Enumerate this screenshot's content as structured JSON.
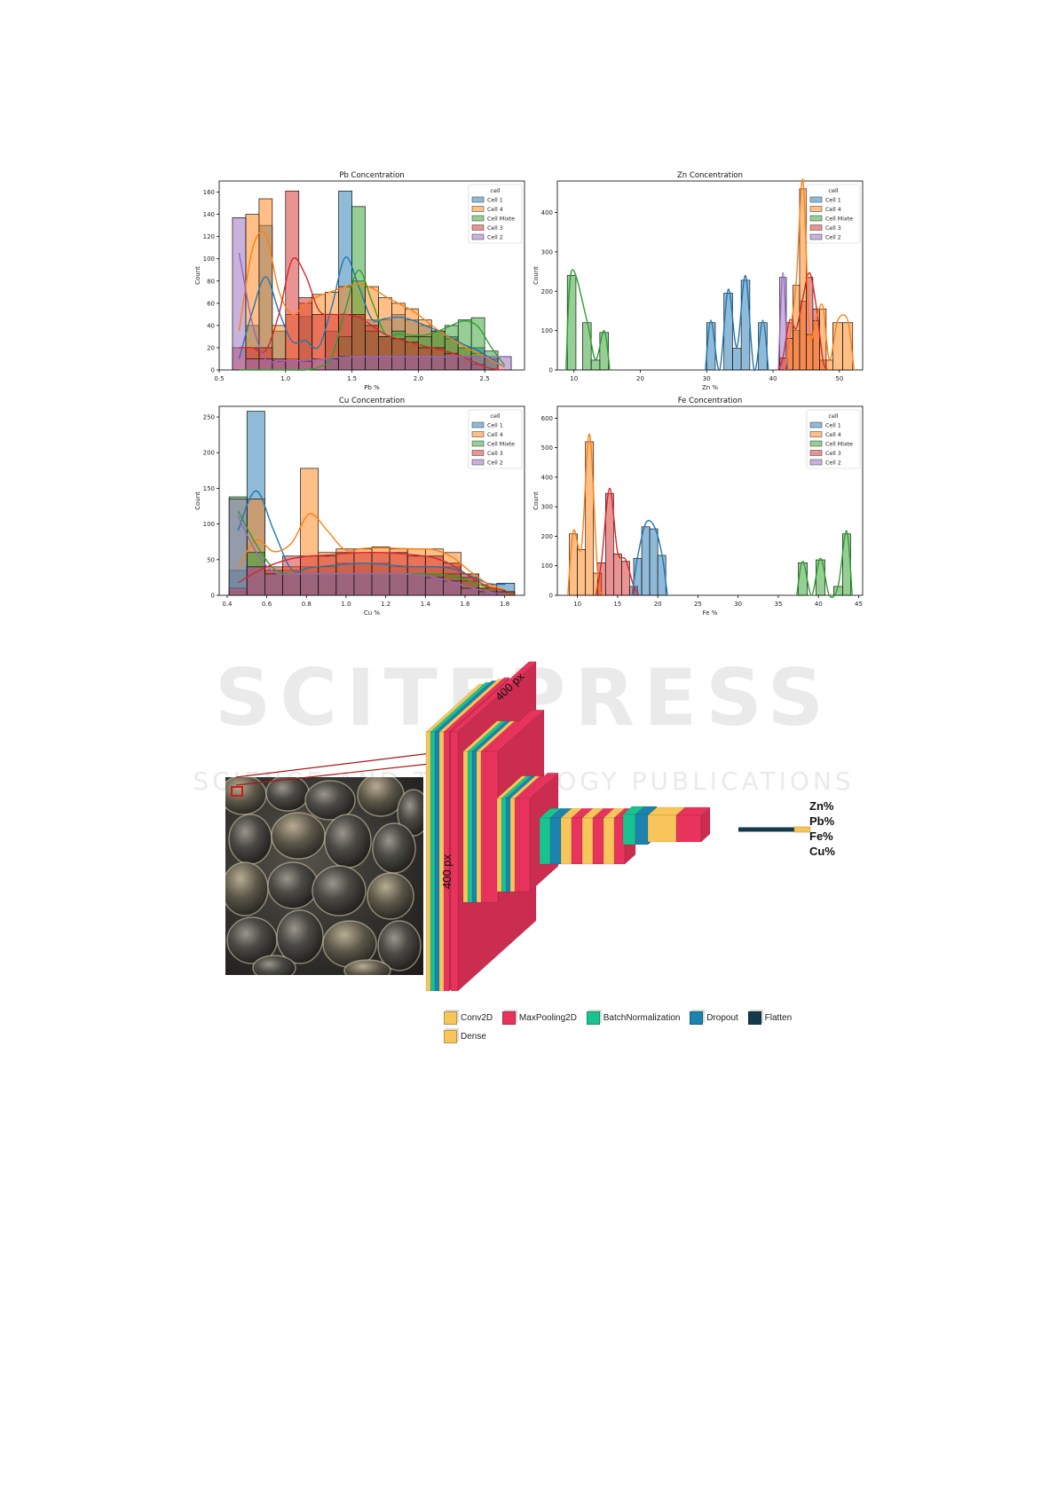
{
  "watermark": {
    "brand": "SCITEPRESS",
    "tagline": "SCIENCE AND TECHNOLOGY PUBLICATIONS"
  },
  "legend_title": "cell",
  "series_names": [
    "Cell 1",
    "Cell 4",
    "Cell Mixte",
    "Cell 3",
    "Cell 2"
  ],
  "colors": {
    "Cell 1": "#1f77b4",
    "Cell 4": "#ff7f0e",
    "Cell Mixte": "#2ca02c",
    "Cell 3": "#d62728",
    "Cell 2": "#9467bd"
  },
  "chart_data": [
    {
      "type": "bar",
      "title": "Pb Concentration",
      "xlabel": "Pb %",
      "ylabel": "Count",
      "xlim": [
        0.5,
        2.8
      ],
      "ylim": [
        0,
        170
      ],
      "xticks": [
        0.5,
        1.0,
        1.5,
        2.0,
        2.5
      ],
      "xtick_labels": [
        "0.5",
        "1.0",
        "1.5",
        "2.0",
        "2.5"
      ],
      "yticks": [
        0,
        20,
        40,
        60,
        80,
        100,
        120,
        140,
        160
      ],
      "ytick_labels": [
        "0",
        "20",
        "40",
        "60",
        "80",
        "100",
        "120",
        "140",
        "160"
      ],
      "legend": "top-right",
      "bin_edges": [
        0.6,
        0.7,
        0.8,
        0.9,
        1.0,
        1.1,
        1.2,
        1.3,
        1.4,
        1.5,
        1.6,
        1.7,
        1.8,
        1.9,
        2.0,
        2.1,
        2.2,
        2.3,
        2.4,
        2.5,
        2.6,
        2.7
      ],
      "series": [
        {
          "name": "Cell 1",
          "values": [
            0,
            40,
            130,
            35,
            10,
            48,
            0,
            35,
            161,
            48,
            45,
            45,
            50,
            45,
            40,
            35,
            30,
            20,
            20,
            10,
            0
          ]
        },
        {
          "name": "Cell 4",
          "values": [
            0,
            140,
            154,
            40,
            50,
            60,
            68,
            70,
            75,
            80,
            75,
            65,
            60,
            55,
            45,
            35,
            28,
            20,
            15,
            10,
            0
          ]
        },
        {
          "name": "Cell Mixte",
          "values": [
            0,
            0,
            0,
            0,
            0,
            0,
            0,
            10,
            30,
            147,
            35,
            30,
            35,
            30,
            30,
            35,
            40,
            45,
            47,
            17,
            0
          ]
        },
        {
          "name": "Cell 3",
          "values": [
            20,
            20,
            20,
            10,
            161,
            65,
            50,
            50,
            50,
            50,
            40,
            30,
            28,
            25,
            20,
            20,
            15,
            12,
            5,
            0,
            0
          ]
        },
        {
          "name": "Cell 2",
          "values": [
            137,
            10,
            10,
            8,
            8,
            8,
            10,
            10,
            12,
            12,
            12,
            12,
            12,
            12,
            12,
            12,
            12,
            12,
            12,
            12,
            12
          ]
        }
      ]
    },
    {
      "type": "bar",
      "title": "Zn Concentration",
      "xlabel": "Zn %",
      "ylabel": "Count",
      "xlim": [
        7.5,
        53.5
      ],
      "ylim": [
        0,
        480
      ],
      "xticks": [
        10,
        20,
        30,
        40,
        50
      ],
      "xtick_labels": [
        "10",
        "20",
        "30",
        "40",
        "50"
      ],
      "yticks": [
        0,
        100,
        200,
        300,
        400
      ],
      "ytick_labels": [
        "0",
        "100",
        "200",
        "300",
        "400"
      ],
      "legend": "top-right",
      "bars": [
        {
          "series": "Cell Mixte",
          "bins": [
            [
              9,
              10.3
            ],
            [
              11.3,
              12.6
            ],
            [
              12.6,
              13.9
            ],
            [
              13.9,
              15.2
            ]
          ],
          "values": [
            240,
            120,
            25,
            95
          ]
        },
        {
          "series": "Cell 1",
          "bins": [
            [
              30,
              31.3
            ],
            [
              31.3,
              32.6
            ],
            [
              32.6,
              33.9
            ],
            [
              33.9,
              35.2
            ],
            [
              35.2,
              36.5
            ],
            [
              36.5,
              37.8
            ],
            [
              37.8,
              39.1
            ]
          ],
          "values": [
            120,
            0,
            195,
            55,
            228,
            0,
            120
          ]
        },
        {
          "series": "Cell 2",
          "bins": [
            [
              41,
              42
            ]
          ],
          "values": [
            235
          ]
        },
        {
          "series": "Cell 3",
          "bins": [
            [
              41,
              42
            ],
            [
              42,
              43
            ],
            [
              43,
              44
            ],
            [
              44,
              45
            ],
            [
              45,
              46
            ],
            [
              46,
              47
            ],
            [
              47,
              48
            ]
          ],
          "values": [
            30,
            120,
            100,
            175,
            235,
            155,
            25
          ]
        },
        {
          "series": "Cell 4",
          "bins": [
            [
              42,
              43
            ],
            [
              43,
              44
            ],
            [
              44,
              45
            ],
            [
              45,
              46
            ],
            [
              46,
              47
            ],
            [
              47,
              48
            ],
            [
              48,
              49
            ],
            [
              49,
              50.5
            ],
            [
              50.5,
              52
            ]
          ],
          "values": [
            80,
            215,
            460,
            90,
            125,
            155,
            25,
            120,
            120
          ]
        }
      ]
    },
    {
      "type": "bar",
      "title": "Cu Concentration",
      "xlabel": "Cu %",
      "ylabel": "Count",
      "xlim": [
        0.36,
        1.9
      ],
      "ylim": [
        0,
        265
      ],
      "xticks": [
        0.4,
        0.6,
        0.8,
        1.0,
        1.2,
        1.4,
        1.6,
        1.8
      ],
      "xtick_labels": [
        "0.4",
        "0.6",
        "0.8",
        "1.0",
        "1.2",
        "1.4",
        "1.6",
        "1.8"
      ],
      "yticks": [
        0,
        50,
        100,
        150,
        200,
        250
      ],
      "ytick_labels": [
        "0",
        "50",
        "100",
        "150",
        "200",
        "250"
      ],
      "legend": "top-right",
      "bin_edges": [
        0.41,
        0.5,
        0.59,
        0.68,
        0.77,
        0.86,
        0.95,
        1.04,
        1.13,
        1.22,
        1.31,
        1.4,
        1.49,
        1.58,
        1.67,
        1.76,
        1.85
      ],
      "series": [
        {
          "name": "Cell 1",
          "values": [
            35,
            258,
            35,
            35,
            40,
            40,
            45,
            45,
            45,
            40,
            40,
            40,
            40,
            30,
            10,
            17
          ]
        },
        {
          "name": "Cell 4",
          "values": [
            5,
            135,
            35,
            40,
            178,
            60,
            65,
            65,
            68,
            65,
            65,
            65,
            60,
            30,
            15,
            5
          ]
        },
        {
          "name": "Cell Mixte",
          "values": [
            138,
            60,
            30,
            30,
            30,
            30,
            30,
            30,
            30,
            30,
            30,
            30,
            30,
            20,
            10,
            5
          ]
        },
        {
          "name": "Cell 3",
          "values": [
            10,
            40,
            40,
            55,
            55,
            55,
            60,
            60,
            60,
            60,
            55,
            55,
            45,
            25,
            10,
            5
          ]
        },
        {
          "name": "Cell 2",
          "values": [
            135,
            40,
            30,
            30,
            30,
            30,
            30,
            30,
            30,
            30,
            30,
            25,
            20,
            10,
            5,
            0
          ]
        }
      ]
    },
    {
      "type": "bar",
      "title": "Fe Concentration",
      "xlabel": "Fe %",
      "ylabel": "Count",
      "xlim": [
        7.5,
        45.5
      ],
      "ylim": [
        0,
        640
      ],
      "xticks": [
        10,
        15,
        20,
        25,
        30,
        35,
        40,
        45
      ],
      "xtick_labels": [
        "10",
        "15",
        "20",
        "25",
        "30",
        "35",
        "40",
        "45"
      ],
      "yticks": [
        0,
        100,
        200,
        300,
        400,
        500,
        600
      ],
      "ytick_labels": [
        "0",
        "100",
        "200",
        "300",
        "400",
        "500",
        "600"
      ],
      "legend": "top-right",
      "bars": [
        {
          "series": "Cell 4",
          "bins": [
            [
              9,
              10
            ],
            [
              10,
              11
            ],
            [
              11,
              12
            ],
            [
              12,
              13
            ]
          ],
          "values": [
            208,
            155,
            520,
            75
          ]
        },
        {
          "series": "Cell 3",
          "bins": [
            [
              12.5,
              13.5
            ],
            [
              13.5,
              14.5
            ],
            [
              14.5,
              15.5
            ],
            [
              15.5,
              16.5
            ],
            [
              16.5,
              17.5
            ]
          ],
          "values": [
            110,
            345,
            140,
            115,
            30
          ]
        },
        {
          "series": "Cell 1",
          "bins": [
            [
              17,
              18
            ],
            [
              18,
              19
            ],
            [
              19,
              20
            ],
            [
              20,
              21
            ]
          ],
          "values": [
            125,
            232,
            225,
            135
          ]
        },
        {
          "series": "Cell Mixte",
          "bins": [
            [
              37.5,
              38.6
            ],
            [
              38.6,
              39.7
            ],
            [
              39.7,
              40.8
            ],
            [
              40.8,
              41.9
            ],
            [
              41.9,
              43
            ],
            [
              43,
              44
            ]
          ],
          "values": [
            110,
            0,
            120,
            0,
            30,
            208
          ]
        }
      ]
    }
  ],
  "cnn": {
    "width_label": "400 px",
    "height_label": "400 px",
    "outputs": [
      "Zn%",
      "Pb%",
      "Fe%",
      "Cu%"
    ],
    "colors": {
      "Conv2D": "#f7c55a",
      "MaxPooling2D": "#e8345d",
      "BatchNormalization": "#19c38f",
      "Dropout": "#1b83ad",
      "Flatten": "#143b4b",
      "Dense": "#f7c55a"
    },
    "legend": [
      "Conv2D",
      "MaxPooling2D",
      "BatchNormalization",
      "Dropout",
      "Flatten",
      "Dense"
    ]
  }
}
